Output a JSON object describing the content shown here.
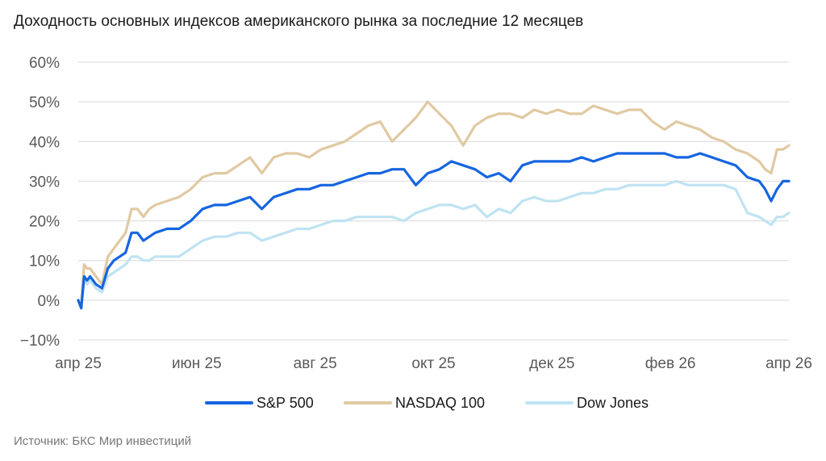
{
  "chart_data": {
    "type": "line",
    "title": "Доходность основных индексов американского рынка за последние 12 месяцев",
    "source": "Источник: БКС Мир инвестиций",
    "ylim": [
      -10,
      60
    ],
    "y_ticks": [
      -10,
      0,
      10,
      20,
      30,
      40,
      50,
      60
    ],
    "y_tick_labels": [
      "−10%",
      "0%",
      "10%",
      "20%",
      "30%",
      "40%",
      "50%",
      "60%"
    ],
    "x_ticks": [
      0,
      2,
      4,
      6,
      8,
      10,
      12
    ],
    "x_tick_labels": [
      "апр 25",
      "июн 25",
      "авг 25",
      "окт 25",
      "дек 25",
      "фев 26",
      "апр 26"
    ],
    "xlim": [
      0,
      12
    ],
    "grid": true,
    "legend_position": "bottom",
    "x": [
      0,
      0.05,
      0.1,
      0.15,
      0.2,
      0.3,
      0.4,
      0.5,
      0.6,
      0.7,
      0.8,
      0.9,
      1.0,
      1.1,
      1.2,
      1.3,
      1.5,
      1.7,
      1.9,
      2.1,
      2.3,
      2.5,
      2.7,
      2.9,
      3.1,
      3.3,
      3.5,
      3.7,
      3.9,
      4.1,
      4.3,
      4.5,
      4.7,
      4.9,
      5.1,
      5.3,
      5.5,
      5.7,
      5.9,
      6.1,
      6.3,
      6.5,
      6.7,
      6.9,
      7.1,
      7.3,
      7.5,
      7.7,
      7.9,
      8.1,
      8.3,
      8.5,
      8.7,
      8.9,
      9.1,
      9.3,
      9.5,
      9.7,
      9.9,
      10.1,
      10.3,
      10.5,
      10.7,
      10.9,
      11.1,
      11.3,
      11.5,
      11.6,
      11.7,
      11.8,
      11.9,
      12.0
    ],
    "series": [
      {
        "name": "S&P 500",
        "color": "#1565e0",
        "values": [
          0,
          -2,
          6,
          5,
          6,
          4,
          3,
          8,
          10,
          11,
          12,
          17,
          17,
          15,
          16,
          17,
          18,
          18,
          20,
          23,
          24,
          24,
          25,
          26,
          23,
          26,
          27,
          28,
          28,
          29,
          29,
          30,
          31,
          32,
          32,
          33,
          33,
          29,
          32,
          33,
          35,
          34,
          33,
          31,
          32,
          30,
          34,
          35,
          35,
          35,
          35,
          36,
          35,
          36,
          37,
          37,
          37,
          37,
          37,
          36,
          36,
          37,
          36,
          35,
          34,
          31,
          30,
          28,
          25,
          28,
          30,
          30
        ]
      },
      {
        "name": "NASDAQ 100",
        "color": "#e0c9a2",
        "values": [
          0,
          -1,
          9,
          8,
          8,
          6,
          4,
          11,
          13,
          15,
          17,
          23,
          23,
          21,
          23,
          24,
          25,
          26,
          28,
          31,
          32,
          32,
          34,
          36,
          32,
          36,
          37,
          37,
          36,
          38,
          39,
          40,
          42,
          44,
          45,
          40,
          43,
          46,
          50,
          47,
          44,
          39,
          44,
          46,
          47,
          47,
          46,
          48,
          47,
          48,
          47,
          47,
          49,
          48,
          47,
          48,
          48,
          45,
          43,
          45,
          44,
          43,
          41,
          40,
          38,
          37,
          35,
          33,
          32,
          38,
          38,
          39
        ]
      },
      {
        "name": "Dow Jones",
        "color": "#bfe3f2",
        "values": [
          0,
          -1,
          5,
          4,
          5,
          3,
          2,
          6,
          7,
          8,
          9,
          11,
          11,
          10,
          10,
          11,
          11,
          11,
          13,
          15,
          16,
          16,
          17,
          17,
          15,
          16,
          17,
          18,
          18,
          19,
          20,
          20,
          21,
          21,
          21,
          21,
          20,
          22,
          23,
          24,
          24,
          23,
          24,
          21,
          23,
          22,
          25,
          26,
          25,
          25,
          26,
          27,
          27,
          28,
          28,
          29,
          29,
          29,
          29,
          30,
          29,
          29,
          29,
          29,
          28,
          22,
          21,
          20,
          19,
          21,
          21,
          22
        ]
      }
    ]
  }
}
